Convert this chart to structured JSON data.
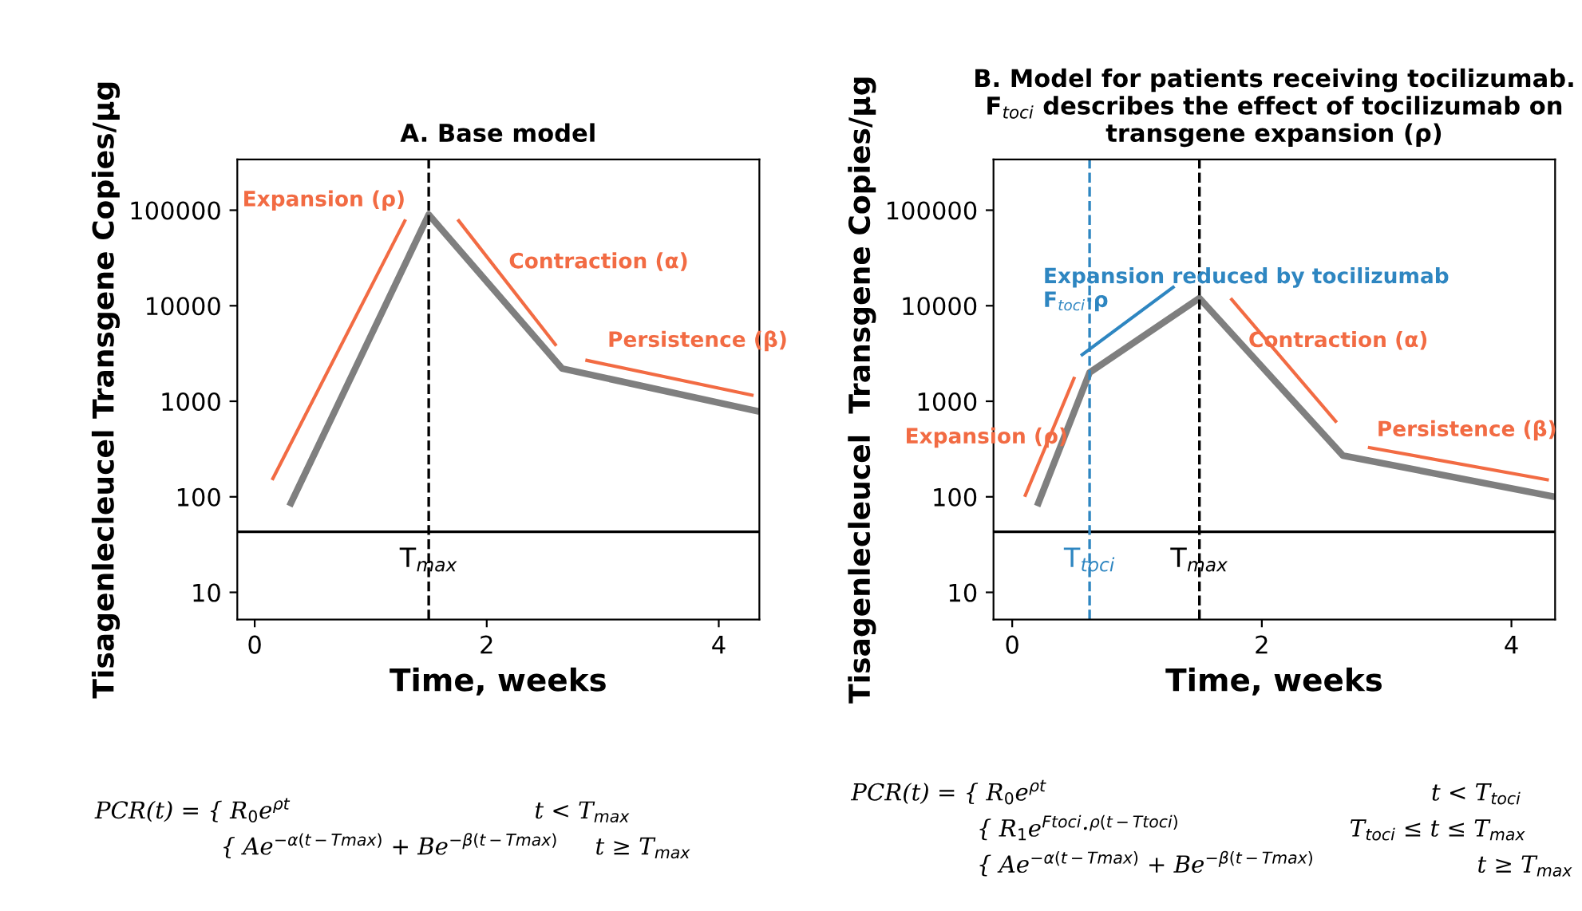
{
  "chart_data": [
    {
      "type": "line",
      "title": "A. Base model",
      "xlabel": "Time, weeks",
      "ylabel": "Tisagenlecleucel Transgene Copies/µg",
      "log": true,
      "xlim": [
        -0.15,
        4.35
      ],
      "xticks": [
        0,
        2,
        4
      ],
      "ylim": [
        5.2,
        340000
      ],
      "yticks": [
        10,
        100,
        1000,
        10000,
        100000
      ],
      "grid": false,
      "legend": false,
      "series": [
        {
          "color": "#7f7f7f",
          "x": [
            0.3,
            1.5,
            2.65,
            4.35
          ],
          "values": [
            80,
            90000,
            2200,
            780
          ]
        },
        {
          "name": "Expansion (ρ)",
          "color": "#f26b43",
          "x": [
            0.15,
            1.3
          ],
          "values": [
            150,
            80000
          ]
        },
        {
          "name": "Contraction (α)",
          "color": "#f26b43",
          "x": [
            1.75,
            2.6
          ],
          "values": [
            80000,
            3800
          ]
        },
        {
          "name": "Persistence (β)",
          "color": "#f26b43",
          "x": [
            2.85,
            4.3
          ],
          "values": [
            2700,
            1150
          ]
        }
      ],
      "ref_lines": [
        {
          "axis": "y",
          "value": 43,
          "color": "#000000",
          "line_style": "solid"
        },
        {
          "axis": "x",
          "value": 1.5,
          "label": "T$_{max}$",
          "color": "#000000",
          "line_style": "dashed"
        }
      ],
      "annotations": [
        "PCR(t) = { R$_{0}$e$^{ρt}$                                 t < T$_{max}$\n                 { Ae$^{−α(t−Tmax)}$ + Be$^{−β(t−Tmax)}$     t ≥ T$_{max}$"
      ]
    },
    {
      "type": "line",
      "title": "B. Model for patients receiving tocilizumab.\nF$_{toci}$ describes the effect of tocilizumab on\ntransgene expansion (ρ)",
      "xlabel": "Time, weeks",
      "ylabel": "Tisagenlecleucel  Transgene Copies/µg",
      "log": true,
      "xlim": [
        -0.15,
        4.35
      ],
      "xticks": [
        0,
        2,
        4
      ],
      "ylim": [
        5.2,
        340000
      ],
      "yticks": [
        10,
        100,
        1000,
        10000,
        100000
      ],
      "grid": false,
      "legend": false,
      "series": [
        {
          "color": "#7f7f7f",
          "x": [
            0.2,
            0.62,
            1.5,
            2.65,
            4.35
          ],
          "values": [
            80,
            2000,
            12000,
            270,
            100
          ]
        },
        {
          "name": "Expansion (ρ)",
          "color": "#f26b43",
          "x": [
            0.1,
            0.5
          ],
          "values": [
            100,
            1800
          ]
        },
        {
          "name": "Expansion reduced by tocilizumab\nF$_{toci}$·ρ",
          "color": "#2e86c1",
          "x": [
            0.55,
            1.3
          ],
          "values": [
            3000,
            16000
          ]
        },
        {
          "name": "Contraction (α)",
          "color": "#f26b43",
          "x": [
            1.75,
            2.6
          ],
          "values": [
            12000,
            600
          ]
        },
        {
          "name": "Persistence (β)",
          "color": "#f26b43",
          "x": [
            2.85,
            4.3
          ],
          "values": [
            330,
            150
          ]
        }
      ],
      "ref_lines": [
        {
          "axis": "y",
          "value": 43,
          "color": "#000000",
          "line_style": "solid"
        },
        {
          "axis": "x",
          "value": 0.62,
          "label": "T$_{toci}$",
          "color": "#2e86c1",
          "line_style": "dashed"
        },
        {
          "axis": "x",
          "value": 1.5,
          "label": "T$_{max}$",
          "color": "#000000",
          "line_style": "dashed"
        }
      ],
      "annotations": [
        "PCR(t) = { R$_{0}$e$^{ρt}$                                                    t < T$_{toci}$\n                 { R$_{1}$e$^{Ftoci}$·$^{ρ(t−Ttoci)}$                       T$_{toci}$ ≤ t ≤ T$_{max}$\n                 { Ae$^{−α(t−Tmax)}$ + Be$^{−β(t−Tmax)}$                      t ≥ T$_{max}$"
      ]
    }
  ]
}
